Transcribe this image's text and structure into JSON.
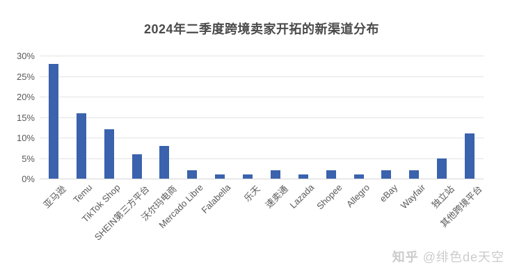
{
  "chart_data": {
    "type": "bar",
    "title": "2024年二季度跨境卖家开拓的新渠道分布",
    "categories": [
      "亚马逊",
      "Temu",
      "TikTok Shop",
      "SHEIN第三方平台",
      "沃尔玛电商",
      "Mercado Libre",
      "Falabella",
      "乐天",
      "速卖通",
      "Lazada",
      "Shopee",
      "Allegro",
      "eBay",
      "Wayfair",
      "独立站",
      "其他跨境平台"
    ],
    "values": [
      28,
      16,
      12,
      6,
      8,
      2,
      1,
      1,
      2,
      1,
      2,
      1,
      2,
      2,
      5,
      11
    ],
    "unit": "%",
    "xlabel": "",
    "ylabel": "",
    "ylim": [
      0,
      30
    ],
    "yticks": [
      0,
      5,
      10,
      15,
      20,
      25,
      30
    ],
    "ytick_labels": [
      "0%",
      "5%",
      "10%",
      "15%",
      "20%",
      "25%",
      "30%"
    ],
    "bar_color": "#3a62ad",
    "grid": true,
    "legend_position": "none",
    "xtick_rotation_deg": 45
  },
  "colors": {
    "background": "#ffffff",
    "title_text": "#4a4a4a",
    "axis_text": "#595959",
    "gridline": "#e3e3e3",
    "bar": "#3a62ad",
    "watermark_text": "#cccccc"
  },
  "watermark": {
    "brand": "知乎",
    "handle": "@绯色de天空"
  }
}
